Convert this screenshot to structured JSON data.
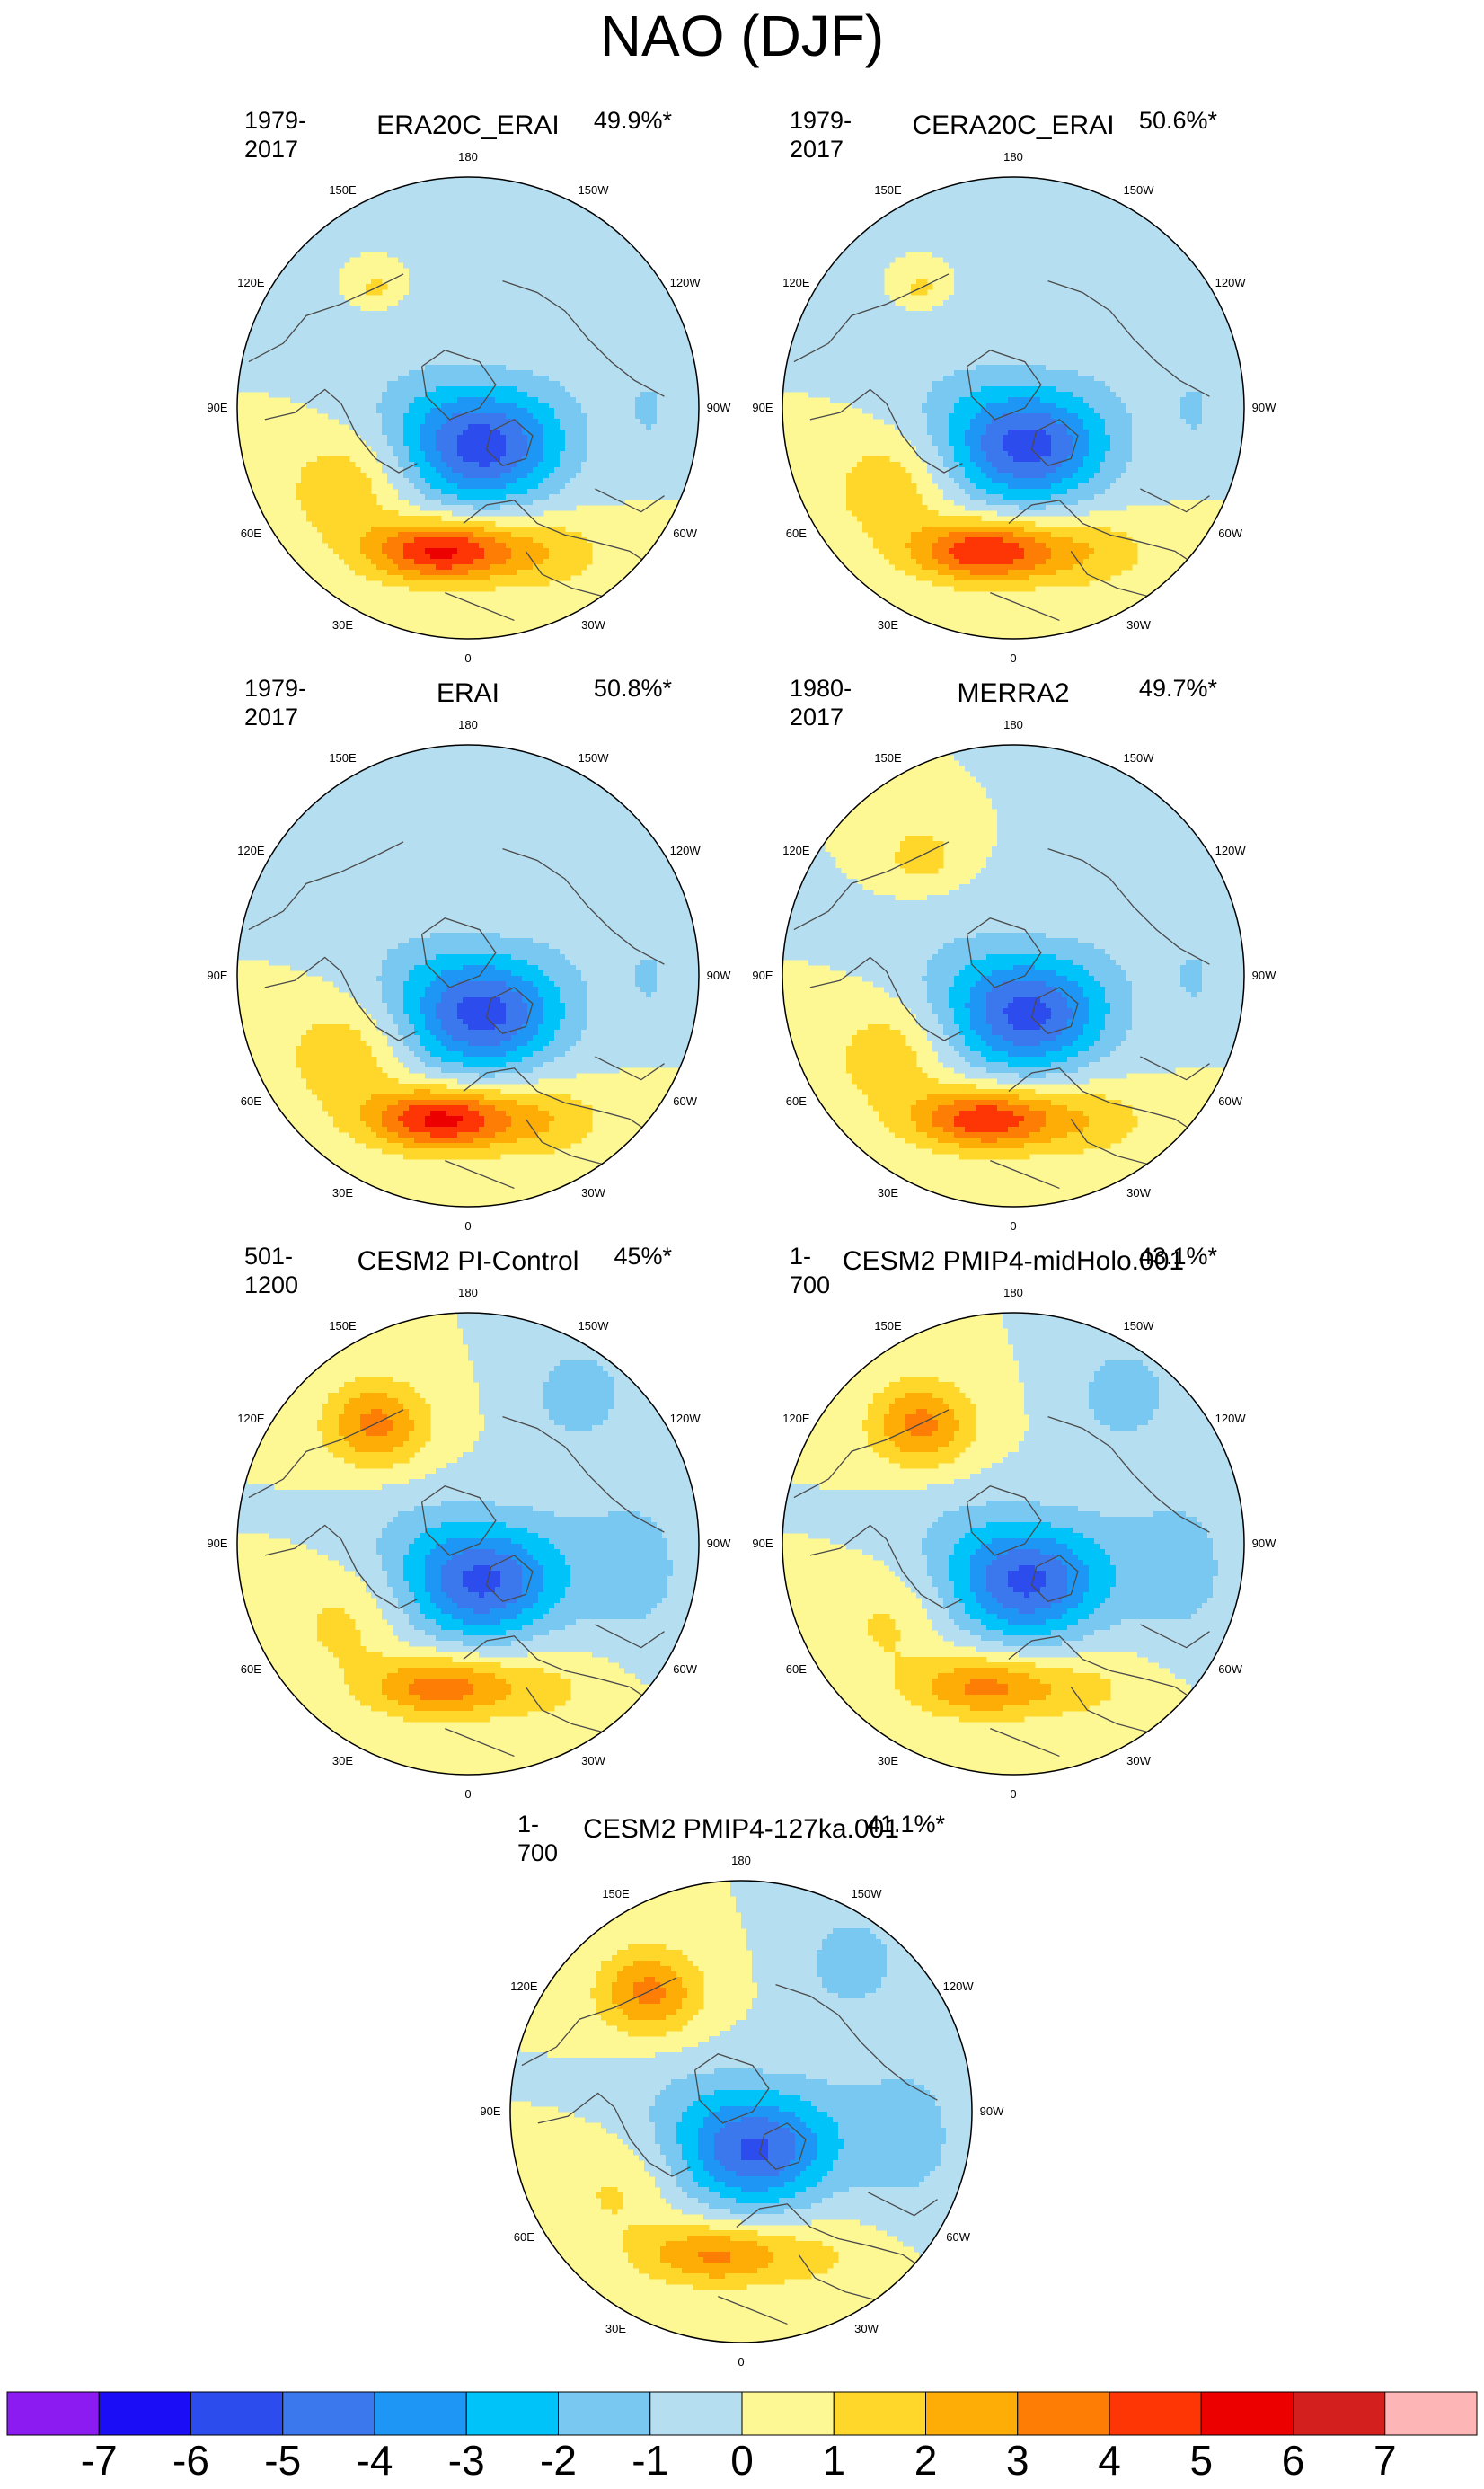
{
  "title": "NAO (DJF)",
  "colors": {
    "continent_line": "#4a4a4a",
    "map_border": "#000000",
    "background_field": "#fef894"
  },
  "colorbar": {
    "labels": [
      "-7",
      "-6",
      "-5",
      "-4",
      "-3",
      "-2",
      "-1",
      "0",
      "1",
      "2",
      "3",
      "4",
      "5",
      "6",
      "7"
    ],
    "colors": [
      "#8b1bf0",
      "#1b0df6",
      "#2d4cee",
      "#3b78ee",
      "#1e96f6",
      "#00c3fa",
      "#78c8f2",
      "#b5def0",
      "#fef894",
      "#fed72a",
      "#fead07",
      "#fe7e05",
      "#fe3505",
      "#ed0000",
      "#d41f1f",
      "#fdb5b5"
    ]
  },
  "longitude_labels": [
    "180",
    "150E",
    "120E",
    "90E",
    "60E",
    "30E",
    "0",
    "30W",
    "60W",
    "90W",
    "120W",
    "150W"
  ],
  "panels": [
    {
      "title": "ERA20C_ERAI",
      "period": "1979-2017",
      "variance": "49.9%*",
      "pacific_blob": "small",
      "africa_blue": false,
      "ne_blue": false,
      "high_max": 5.2,
      "low_min": -5.3
    },
    {
      "title": "CERA20C_ERAI",
      "period": "1979-2017",
      "variance": "50.6%*",
      "pacific_blob": "small",
      "africa_blue": false,
      "ne_blue": false,
      "high_max": 5.0,
      "low_min": -5.2
    },
    {
      "title": "ERAI",
      "period": "1979-2017",
      "variance": "50.8%*",
      "pacific_blob": "none",
      "africa_blue": false,
      "ne_blue": false,
      "high_max": 5.3,
      "low_min": -5.2
    },
    {
      "title": "MERRA2",
      "period": "1980-2017",
      "variance": "49.7%*",
      "pacific_blob": "medium",
      "africa_blue": false,
      "ne_blue": false,
      "high_max": 4.8,
      "low_min": -5.1
    },
    {
      "title": "CESM2 PI-Control",
      "period": "501-1200",
      "variance": "45%*",
      "pacific_blob": "large",
      "africa_blue": true,
      "ne_blue": true,
      "high_max": 3.6,
      "low_min": -5.0
    },
    {
      "title": "CESM2 PMIP4-midHolo.001",
      "period": "1-700",
      "variance": "43.1%*",
      "pacific_blob": "large",
      "africa_blue": true,
      "ne_blue": true,
      "high_max": 3.3,
      "low_min": -5.0
    },
    {
      "title": "CESM2 PMIP4-127ka.001",
      "period": "1-700",
      "variance": "41.1%*",
      "pacific_blob": "large",
      "africa_blue": true,
      "ne_blue": true,
      "high_max": 3.2,
      "low_min": -4.9
    }
  ]
}
